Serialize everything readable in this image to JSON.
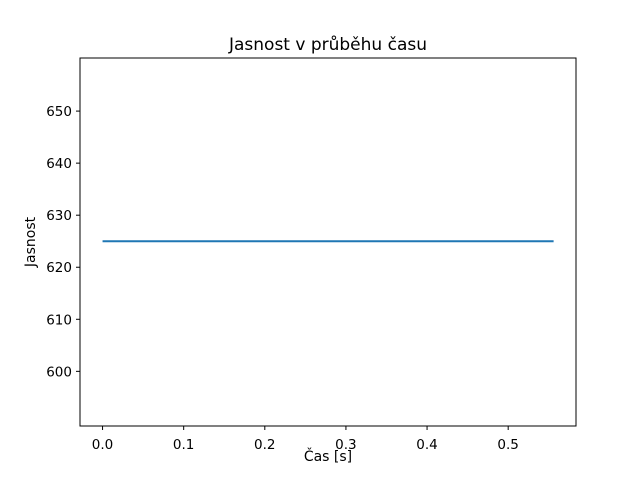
{
  "chart_data": {
    "type": "line",
    "title": "Jasnost v průběhu času",
    "xlabel": "Čas [s]",
    "ylabel": "Jasnost",
    "xlim": [
      -0.0278,
      0.5836
    ],
    "ylim": [
      589.5,
      660.2
    ],
    "xticks": [
      0.0,
      0.1,
      0.2,
      0.3,
      0.4,
      0.5
    ],
    "xtick_labels": [
      "0.0",
      "0.1",
      "0.2",
      "0.3",
      "0.4",
      "0.5"
    ],
    "yticks": [
      600,
      610,
      620,
      630,
      640,
      650
    ],
    "ytick_labels": [
      "600",
      "610",
      "620",
      "630",
      "640",
      "650"
    ],
    "grid": false,
    "legend": null,
    "series": [
      {
        "name": "jasnost",
        "color": "#1f77b4",
        "linewidth": 2,
        "x": [
          0.0,
          0.556
        ],
        "y": [
          625,
          625
        ]
      }
    ]
  },
  "colors": {
    "background": "#ffffff",
    "spine": "#000000",
    "text": "#000000",
    "line": "#1f77b4"
  }
}
